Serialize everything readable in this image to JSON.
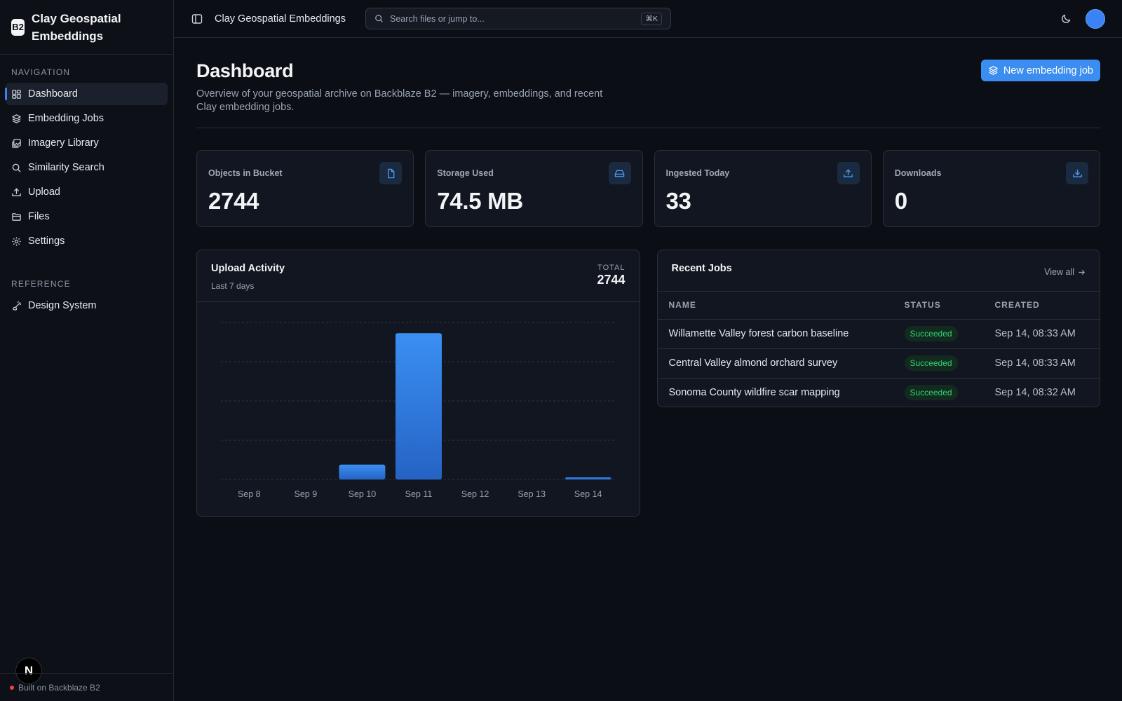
{
  "app": {
    "logo_text": "B2",
    "name": "Clay Geospatial Embeddings"
  },
  "sidebar": {
    "navigation_label": "NAVIGATION",
    "items": [
      {
        "label": "Dashboard",
        "icon": "dashboard-icon",
        "active": true
      },
      {
        "label": "Embedding Jobs",
        "icon": "layers-icon"
      },
      {
        "label": "Imagery Library",
        "icon": "images-icon"
      },
      {
        "label": "Similarity Search",
        "icon": "search-icon"
      },
      {
        "label": "Upload",
        "icon": "upload-icon"
      },
      {
        "label": "Files",
        "icon": "folder-icon"
      },
      {
        "label": "Settings",
        "icon": "gear-icon"
      }
    ],
    "reference_label": "REFERENCE",
    "reference_items": [
      {
        "label": "Design System",
        "icon": "palette-icon"
      }
    ],
    "footer_text": "Built on Backblaze B2",
    "badge_letter": "N"
  },
  "topbar": {
    "title": "Clay Geospatial Embeddings",
    "search_placeholder": "Search files or jump to...",
    "search_shortcut": "⌘K"
  },
  "header": {
    "title": "Dashboard",
    "description": "Overview of your geospatial archive on Backblaze B2 — imagery, embeddings, and recent Clay embedding jobs.",
    "primary_button": "New embedding job"
  },
  "stats": [
    {
      "label": "Objects in Bucket",
      "value": "2744",
      "icon": "file-icon"
    },
    {
      "label": "Storage Used",
      "value": "74.5 MB",
      "icon": "drive-icon"
    },
    {
      "label": "Ingested Today",
      "value": "33",
      "icon": "upload-icon"
    },
    {
      "label": "Downloads",
      "value": "0",
      "icon": "download-icon"
    }
  ],
  "upload_activity": {
    "title": "Upload Activity",
    "subtitle": "Last 7 days",
    "total_label": "TOTAL",
    "total_value": "2744"
  },
  "chart_data": {
    "type": "bar",
    "categories": [
      "Sep 8",
      "Sep 9",
      "Sep 10",
      "Sep 11",
      "Sep 12",
      "Sep 13",
      "Sep 14"
    ],
    "values": [
      0,
      0,
      250,
      2461,
      0,
      0,
      33
    ],
    "ylim": [
      0,
      2640
    ],
    "grid": true
  },
  "recent_jobs": {
    "title": "Recent Jobs",
    "view_all": "View all",
    "columns": [
      "NAME",
      "STATUS",
      "CREATED"
    ],
    "rows": [
      {
        "name": "Willamette Valley forest carbon baseline",
        "status": "Succeeded",
        "created": "Sep 14, 08:33 AM"
      },
      {
        "name": "Central Valley almond orchard survey",
        "status": "Succeeded",
        "created": "Sep 14, 08:33 AM"
      },
      {
        "name": "Sonoma County wildfire scar mapping",
        "status": "Succeeded",
        "created": "Sep 14, 08:32 AM"
      }
    ]
  },
  "colors": {
    "accent": "#3b8df0",
    "bar_top": "#3b8ff3",
    "bar_bottom": "#2563c4",
    "success": "#34d178"
  }
}
